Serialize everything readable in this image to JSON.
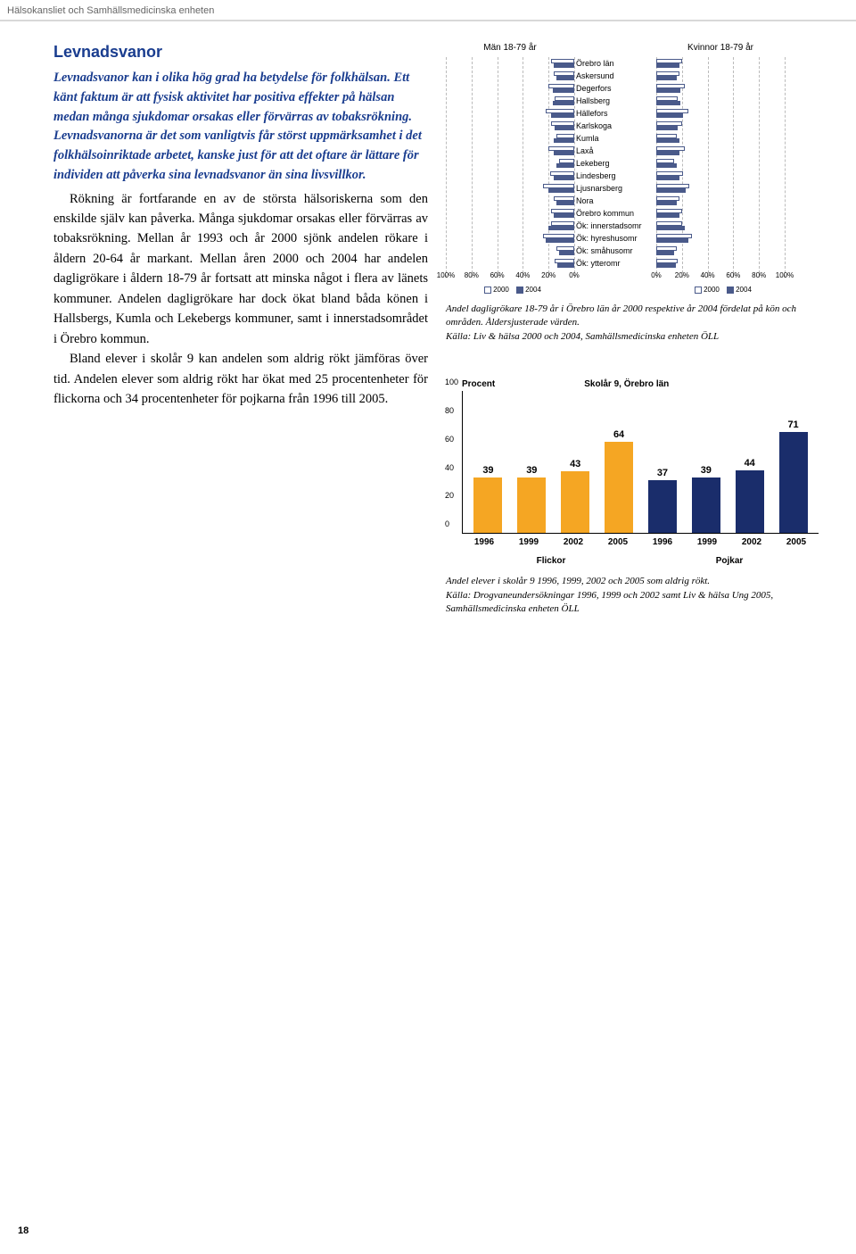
{
  "header": "Hälsokansliet och Samhällsmedicinska enheten",
  "page_number": "18",
  "section_title": "Levnadsvanor",
  "intro": "Levnadsvanor kan i olika hög grad ha betydelse för folkhälsan. Ett känt faktum är att fysisk aktivitet har positiva effekter på hälsan medan många sjukdomar orsakas eller förvärras av tobaksrökning. Levnadsvanorna är det som vanligtvis får störst uppmärksamhet i det folkhälsoinriktade arbetet, kanske just för att det oftare är lättare för individen att påverka sina levnadsvanor än sina livsvillkor.",
  "para1": "Rökning är fortfarande en av de största hälsoriskerna som den enskilde själv kan påverka. Många sjukdomar orsakas eller förvärras av tobaksrökning. Mellan år 1993 och år 2000 sjönk andelen rökare i åldern 20-64 år markant. Mellan åren 2000 och 2004 har andelen dagligrökare i åldern 18-79 år fortsatt att minska något i flera av länets kommuner. Andelen dagligrökare har dock ökat bland båda könen i Hallsbergs, Kumla och Lekebergs kommuner, samt i innerstadsområdet i Örebro kommun.",
  "para2": "Bland elever i skolår 9 kan andelen som aldrig rökt jämföras över tid. Andelen elever som aldrig rökt har ökat med 25 procentenheter för flickorna och 34 procentenheter för pojkarna från 1996 till 2005.",
  "hchart": {
    "title_left": "Män 18-79 år",
    "title_right": "Kvinnor 18-79 år",
    "categories": [
      "Örebro län",
      "Askersund",
      "Degerfors",
      "Hallsberg",
      "Hällefors",
      "Karlskoga",
      "Kumla",
      "Laxå",
      "Lekeberg",
      "Lindesberg",
      "Ljusnarsberg",
      "Nora",
      "Örebro kommun",
      "Ök: innerstadsomr",
      "Ök: hyreshusomr",
      "Ök: småhusomr",
      "Ök: ytteromr"
    ],
    "men_2000": [
      18,
      16,
      20,
      15,
      22,
      18,
      14,
      20,
      12,
      19,
      24,
      16,
      18,
      18,
      24,
      14,
      15
    ],
    "men_2004": [
      16,
      14,
      17,
      17,
      18,
      15,
      16,
      16,
      14,
      16,
      20,
      14,
      16,
      20,
      22,
      12,
      13
    ],
    "women_2000": [
      20,
      18,
      22,
      17,
      25,
      20,
      16,
      22,
      14,
      21,
      26,
      18,
      20,
      20,
      28,
      16,
      17
    ],
    "women_2004": [
      18,
      16,
      19,
      19,
      21,
      17,
      18,
      18,
      16,
      18,
      23,
      16,
      18,
      22,
      25,
      14,
      15
    ],
    "axis_ticks": [
      "100%",
      "80%",
      "60%",
      "40%",
      "20%",
      "0%"
    ],
    "axis_ticks_right": [
      "0%",
      "20%",
      "40%",
      "60%",
      "80%",
      "100%"
    ],
    "legend_2000": "2000",
    "legend_2004": "2004",
    "color_2000": "#ffffff",
    "color_2004": "#4a5a8a",
    "border_color": "#4a5a8a",
    "caption": "Andel dagligrökare 18-79 år i Örebro län år 2000 respektive år 2004 fördelat på kön och områden. Åldersjusterade värden.",
    "source": "Källa: Liv & hälsa 2000 och 2004, Samhällsmedicinska enheten ÖLL"
  },
  "vchart": {
    "ylabel": "Procent",
    "title": "Skolår 9, Örebro län",
    "ymax": 100,
    "yticks": [
      0,
      20,
      40,
      60,
      80,
      100
    ],
    "years": [
      "1996",
      "1999",
      "2002",
      "2005",
      "1996",
      "1999",
      "2002",
      "2005"
    ],
    "values": [
      39,
      39,
      43,
      64,
      37,
      39,
      44,
      71
    ],
    "colors": [
      "#f5a623",
      "#f5a623",
      "#f5a623",
      "#f5a623",
      "#1a2d6b",
      "#1a2d6b",
      "#1a2d6b",
      "#1a2d6b"
    ],
    "group_labels": [
      "Flickor",
      "Pojkar"
    ],
    "caption": "Andel elever i skolår 9 1996, 1999, 2002 och 2005 som aldrig rökt.",
    "source": "Källa: Drogvaneundersökningar 1996, 1999 och 2002 samt Liv & hälsa Ung 2005, Samhällsmedicinska enheten ÖLL"
  }
}
